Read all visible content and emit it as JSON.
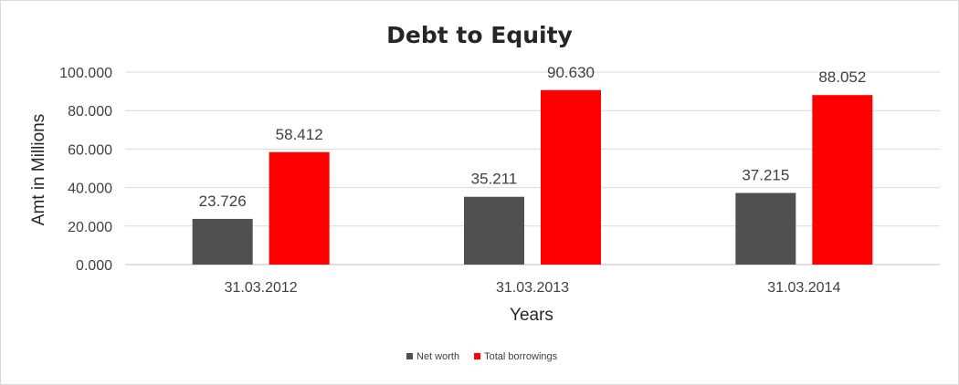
{
  "chart_data": {
    "type": "bar",
    "title": "Debt to Equity",
    "xlabel": "Years",
    "ylabel": "Amt in Millions",
    "categories": [
      "31.03.2012",
      "31.03.2013",
      "31.03.2014"
    ],
    "series": [
      {
        "name": "Net worth",
        "color": "#505050",
        "values": [
          23.726,
          35.211,
          37.215
        ],
        "labels": [
          "23.726",
          "35.211",
          "37.215"
        ]
      },
      {
        "name": "Total borrowings",
        "color": "#ff0000",
        "values": [
          58.412,
          90.63,
          88.052
        ],
        "labels": [
          "58.412",
          "90.630",
          "88.052"
        ]
      }
    ],
    "ylim": [
      0,
      100
    ],
    "yticks": [
      {
        "value": 0,
        "label": "0.000"
      },
      {
        "value": 20,
        "label": "20.000"
      },
      {
        "value": 40,
        "label": "40.000"
      },
      {
        "value": 60,
        "label": "60.000"
      },
      {
        "value": 80,
        "label": "80.000"
      },
      {
        "value": 100,
        "label": "100.000"
      }
    ],
    "grid": true,
    "legend_position": "bottom"
  }
}
